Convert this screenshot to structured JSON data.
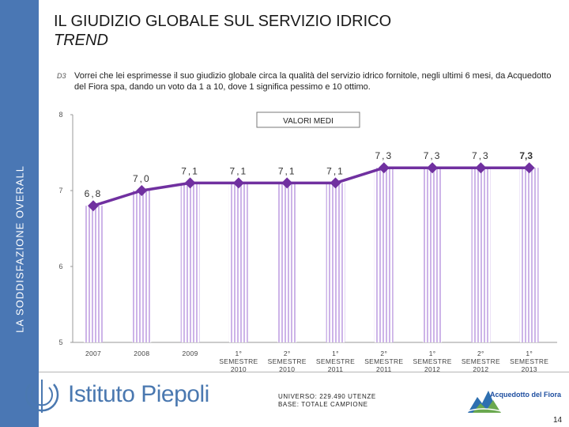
{
  "sidebar": {
    "label": "LA SODDISFAZIONE OVERALL"
  },
  "header": {
    "title": "IL GIUDIZIO GLOBALE SUL SERVIZIO IDRICO",
    "subtitle": "TREND",
    "question_icon": "D3",
    "question": "Vorrei che lei esprimesse il suo giudizio globale circa la qualità del servizio idrico fornitole, negli ultimi 6 mesi, da Acquedotto del Fiora spa, dando un voto da 1 a 10, dove 1 significa pessimo e 10 ottimo."
  },
  "chart_data": {
    "type": "line",
    "legend_label": "VALORI MEDI",
    "categories": [
      [
        "2007"
      ],
      [
        "2008"
      ],
      [
        "2009"
      ],
      [
        "1°",
        "SEMESTRE",
        "2010"
      ],
      [
        "2°",
        "SEMESTRE",
        "2010"
      ],
      [
        "1°",
        "SEMESTRE",
        "2011"
      ],
      [
        "2°",
        "SEMESTRE",
        "2011"
      ],
      [
        "1°",
        "SEMESTRE",
        "2012"
      ],
      [
        "2°",
        "SEMESTRE",
        "2012"
      ],
      [
        "1°",
        "SEMESTRE",
        "2013"
      ]
    ],
    "values": [
      6.8,
      7.0,
      7.1,
      7.1,
      7.1,
      7.1,
      7.3,
      7.3,
      7.3,
      7.3
    ],
    "labels": [
      "6,8",
      "7,0",
      "7,1",
      "7,1",
      "7,1",
      "7,1",
      "7,3",
      "7,3",
      "7,3",
      "7,3"
    ],
    "highlight_last": true,
    "ylim": [
      5,
      8
    ],
    "yticks": [
      "5",
      "6",
      "7",
      "8"
    ],
    "colors": {
      "line": "#7030a0",
      "bar_stripe": "#cdb4e8",
      "bar_fill": "#ffffff",
      "axis": "#999999"
    }
  },
  "footer": {
    "logo_text": "Istituto Piepoli",
    "universe_line1": "UNIVERSO: 229.490 UTENZE",
    "universe_line2": "BASE: TOTALE CAMPIONE",
    "brand_text": "Acquedotto del Fiora",
    "page_number": "14"
  },
  "theme": {
    "sidebar": "#4a77b4",
    "logo": "#4a78b0"
  }
}
